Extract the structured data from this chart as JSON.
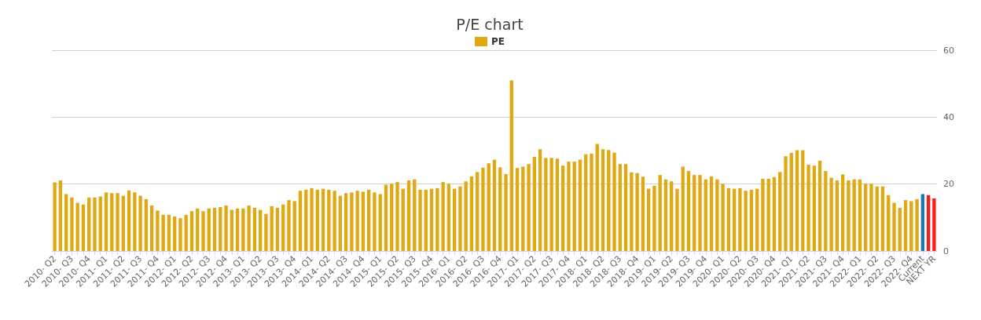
{
  "chart_data": {
    "type": "bar",
    "title": "P/E chart",
    "categories": [
      "2010- Q2",
      null,
      null,
      "2010- Q3",
      null,
      null,
      "2010- Q4",
      null,
      null,
      "2011- Q1",
      null,
      null,
      "2011- Q2",
      null,
      null,
      "2011- Q3",
      null,
      null,
      "2011- Q4",
      null,
      null,
      "2012- Q1",
      null,
      null,
      "2012- Q2",
      null,
      null,
      "2012- Q3",
      null,
      null,
      "2012- Q4",
      null,
      null,
      "2013- Q1",
      null,
      null,
      "2013- Q2",
      null,
      null,
      "2013- Q3",
      null,
      null,
      "2013- Q4",
      null,
      null,
      "2014- Q1",
      null,
      null,
      "2014- Q2",
      null,
      null,
      "2014- Q3",
      null,
      null,
      "2014- Q4",
      null,
      null,
      "2015- Q1",
      null,
      null,
      "2015- Q2",
      null,
      null,
      "2015- Q3",
      null,
      null,
      "2015- Q4",
      null,
      null,
      "2016- Q1",
      null,
      null,
      "2016- Q2",
      null,
      null,
      "2016- Q3",
      null,
      null,
      "2016- Q4",
      null,
      null,
      "2017- Q1",
      null,
      null,
      "2017- Q2",
      null,
      null,
      "2017- Q3",
      null,
      null,
      "2017- Q4",
      null,
      null,
      "2018- Q1",
      null,
      null,
      "2018- Q2",
      null,
      null,
      "2018- Q3",
      null,
      null,
      "2018- Q4",
      null,
      null,
      "2019- Q1",
      null,
      null,
      "2019- Q2",
      null,
      null,
      "2019- Q3",
      null,
      null,
      "2019- Q4",
      null,
      null,
      "2020- Q1",
      null,
      null,
      "2020- Q2",
      null,
      null,
      "2020- Q3",
      null,
      null,
      "2020- Q4",
      null,
      null,
      "2021- Q1",
      null,
      null,
      "2021- Q2",
      null,
      null,
      "2021- Q3",
      null,
      null,
      "2021- Q4",
      null,
      null,
      "2022- Q1",
      null,
      null,
      "2022- Q2",
      null,
      null,
      "2022- Q3",
      null,
      null,
      "2022- Q4",
      null,
      "Current",
      null,
      "NEXT YR"
    ],
    "series": [
      {
        "name": "PE",
        "color": "#e0a912",
        "values": [
          20.5,
          21.1,
          17.0,
          16.0,
          14.4,
          13.9,
          16.0,
          16.0,
          16.3,
          17.5,
          17.3,
          17.3,
          16.5,
          18.1,
          17.5,
          16.5,
          15.5,
          13.6,
          12.1,
          10.8,
          10.8,
          10.3,
          9.8,
          10.8,
          11.9,
          12.7,
          11.9,
          12.7,
          12.9,
          13.1,
          13.6,
          12.3,
          12.7,
          12.7,
          13.6,
          12.9,
          12.3,
          11.1,
          13.4,
          12.9,
          13.9,
          15.2,
          14.9,
          18.0,
          18.3,
          18.8,
          18.3,
          18.6,
          18.3,
          18.0,
          16.5,
          17.3,
          17.5,
          18.0,
          17.7,
          18.3,
          17.5,
          17.0,
          19.8,
          20.1,
          20.6,
          18.6,
          21.1,
          21.4,
          18.3,
          18.3,
          18.6,
          18.8,
          20.6,
          20.1,
          18.6,
          19.3,
          20.8,
          22.3,
          23.6,
          24.9,
          26.2,
          27.3,
          25.0,
          23.0,
          51.0,
          24.8,
          25.2,
          26.0,
          28.1,
          30.4,
          27.8,
          27.8,
          27.6,
          25.5,
          26.7,
          26.7,
          27.3,
          28.9,
          29.1,
          32.0,
          30.4,
          30.2,
          29.4,
          26.0,
          26.0,
          23.5,
          23.3,
          22.2,
          18.6,
          19.5,
          22.7,
          21.4,
          20.8,
          18.6,
          25.2,
          23.9,
          22.7,
          22.7,
          21.4,
          22.3,
          21.4,
          20.1,
          18.8,
          18.6,
          18.8,
          18.0,
          18.3,
          18.6,
          21.6,
          21.6,
          22.1,
          23.6,
          28.3,
          29.3,
          30.1,
          30.1,
          25.8,
          25.5,
          27.0,
          23.9,
          21.9,
          21.1,
          22.9,
          21.1,
          21.4,
          21.4,
          20.1,
          20.1,
          19.3,
          19.3,
          16.7,
          14.4,
          12.9,
          15.2,
          14.9,
          15.5,
          17.0,
          16.7,
          15.7
        ],
        "colors": [
          "#e0a912",
          "#e0a912",
          "#e0a912",
          "#e0a912",
          "#e0a912",
          "#e0a912",
          "#e0a912",
          "#e0a912",
          "#e0a912",
          "#e0a912",
          "#e0a912",
          "#e0a912",
          "#e0a912",
          "#e0a912",
          "#e0a912",
          "#e0a912",
          "#e0a912",
          "#e0a912",
          "#e0a912",
          "#e0a912",
          "#e0a912",
          "#e0a912",
          "#e0a912",
          "#e0a912",
          "#e0a912",
          "#e0a912",
          "#e0a912",
          "#e0a912",
          "#e0a912",
          "#e0a912",
          "#e0a912",
          "#e0a912",
          "#e0a912",
          "#e0a912",
          "#e0a912",
          "#e0a912",
          "#e0a912",
          "#e0a912",
          "#e0a912",
          "#e0a912",
          "#e0a912",
          "#e0a912",
          "#e0a912",
          "#e0a912",
          "#e0a912",
          "#e0a912",
          "#e0a912",
          "#e0a912",
          "#e0a912",
          "#e0a912",
          "#e0a912",
          "#e0a912",
          "#e0a912",
          "#e0a912",
          "#e0a912",
          "#e0a912",
          "#e0a912",
          "#e0a912",
          "#e0a912",
          "#e0a912",
          "#e0a912",
          "#e0a912",
          "#e0a912",
          "#e0a912",
          "#e0a912",
          "#e0a912",
          "#e0a912",
          "#e0a912",
          "#e0a912",
          "#e0a912",
          "#e0a912",
          "#e0a912",
          "#e0a912",
          "#e0a912",
          "#e0a912",
          "#e0a912",
          "#e0a912",
          "#e0a912",
          "#e0a912",
          "#e0a912",
          "#e0a912",
          "#e0a912",
          "#e0a912",
          "#e0a912",
          "#e0a912",
          "#e0a912",
          "#e0a912",
          "#e0a912",
          "#e0a912",
          "#e0a912",
          "#e0a912",
          "#e0a912",
          "#e0a912",
          "#e0a912",
          "#e0a912",
          "#e0a912",
          "#e0a912",
          "#e0a912",
          "#e0a912",
          "#e0a912",
          "#e0a912",
          "#e0a912",
          "#e0a912",
          "#e0a912",
          "#e0a912",
          "#e0a912",
          "#e0a912",
          "#e0a912",
          "#e0a912",
          "#e0a912",
          "#e0a912",
          "#e0a912",
          "#e0a912",
          "#e0a912",
          "#e0a912",
          "#e0a912",
          "#e0a912",
          "#e0a912",
          "#e0a912",
          "#e0a912",
          "#e0a912",
          "#e0a912",
          "#e0a912",
          "#e0a912",
          "#e0a912",
          "#e0a912",
          "#e0a912",
          "#e0a912",
          "#e0a912",
          "#e0a912",
          "#e0a912",
          "#e0a912",
          "#e0a912",
          "#e0a912",
          "#e0a912",
          "#e0a912",
          "#e0a912",
          "#e0a912",
          "#e0a912",
          "#e0a912",
          "#e0a912",
          "#e0a912",
          "#e0a912",
          "#e0a912",
          "#e0a912",
          "#e0a912",
          "#e0a912",
          "#e0a912",
          "#e0a912",
          "#e0a912",
          "#e0a912",
          "#e0a912",
          "#1f78b4",
          "#ff1a1a",
          "#ff1a1a"
        ]
      }
    ],
    "ylim": [
      0,
      60
    ],
    "yticks": [
      0,
      20,
      40,
      60
    ],
    "grid": "y",
    "legend": "top"
  }
}
